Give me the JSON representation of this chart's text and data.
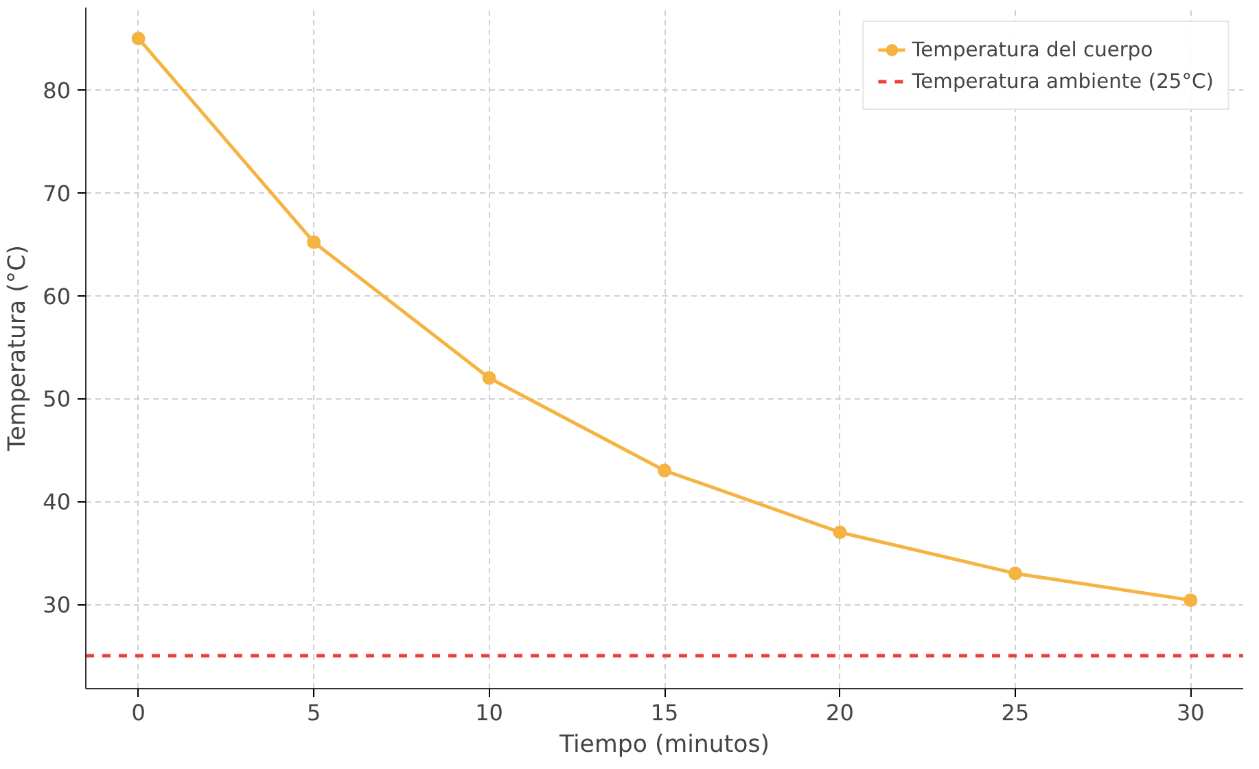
{
  "chart_data": {
    "type": "line",
    "xlabel": "Tiempo (minutos)",
    "ylabel": "Temperatura (°C)",
    "x": [
      0,
      5,
      10,
      15,
      20,
      25,
      30
    ],
    "series": [
      {
        "name": "Temperatura del cuerpo",
        "color": "#f5b342",
        "values": [
          85,
          65.2,
          52,
          43,
          37,
          33,
          30.4
        ]
      }
    ],
    "ref_lines": [
      {
        "axis": "y",
        "value": 25,
        "label": "Temperatura ambiente (25°C)",
        "color": "#e8403a",
        "line_style": "dashed"
      }
    ],
    "xlim": [
      -1.5,
      31.5
    ],
    "ylim": [
      21.8,
      88
    ],
    "xticks": [
      0,
      5,
      10,
      15,
      20,
      25,
      30
    ],
    "yticks": [
      30,
      40,
      50,
      60,
      70,
      80
    ],
    "grid": true,
    "legend": "top right",
    "marker": "circle",
    "line_style": "solid"
  }
}
